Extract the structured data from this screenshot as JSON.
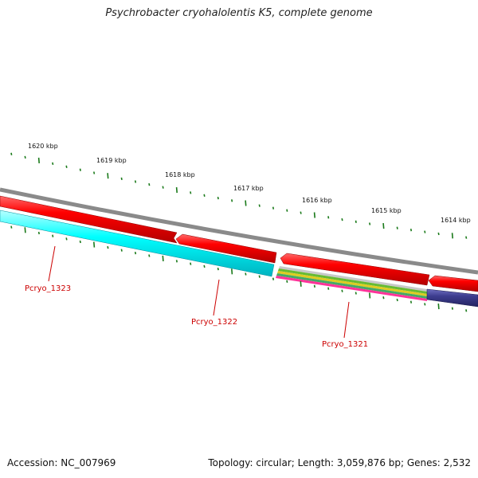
{
  "title": "Psychrobacter cryohalolentis K5, complete genome",
  "footer": {
    "accession": "Accession: NC_007969",
    "summary": "Topology: circular; Length: 3,059,876 bp; Genes: 2,532"
  },
  "scale": {
    "labels": [
      "1620 kbp",
      "1619 kbp",
      "1618 kbp",
      "1617 kbp",
      "1616 kbp",
      "1615 kbp",
      "1614 kbp"
    ]
  },
  "genes": {
    "labels": [
      "Pcryo_1323",
      "Pcryo_1322",
      "Pcryo_1321"
    ]
  },
  "colors": {
    "backbone": "#8a8a8a",
    "forward_cds": "#ff0000",
    "reverse_cds_1323": "#00ffff",
    "reverse_cds_1321": "#ff3399",
    "reverse_cds_other": "#3d3d8f",
    "tick": "#1a7a1a",
    "gene_label": "#cc0000"
  }
}
